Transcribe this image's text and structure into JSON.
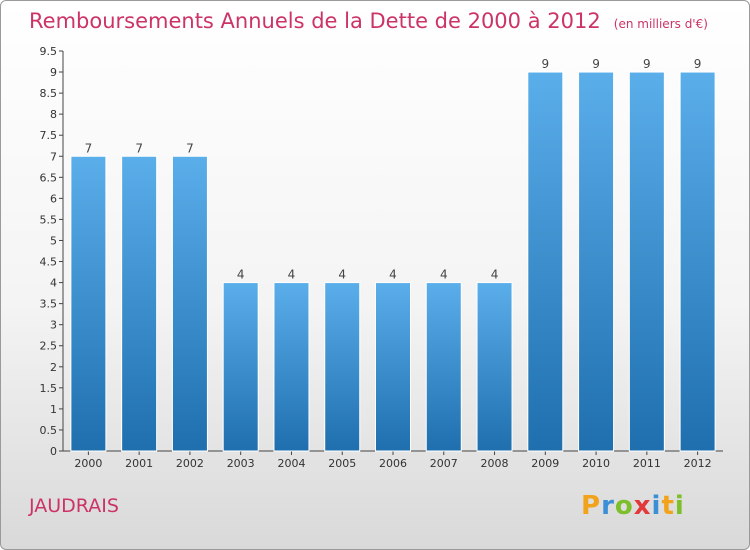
{
  "header": {
    "title": "Remboursements Annuels de la Dette de 2000 à 2012",
    "unit": "(en milliers d'€)"
  },
  "footer": {
    "commune": "JAUDRAIS",
    "logo_letters": [
      "P",
      "r",
      "o",
      "x",
      "i",
      "t",
      "i"
    ],
    "logo_colors": [
      "#f2a31c",
      "#3a8fd6",
      "#7cbf2a",
      "#e23a3a",
      "#3a8fd6",
      "#f2a31c",
      "#7cbf2a"
    ]
  },
  "colors": {
    "bar_top": "#5aaeea",
    "bar_bottom": "#1f6fae",
    "axis": "#444444",
    "grid": "#cccccc"
  },
  "chart_data": {
    "type": "bar",
    "categories": [
      "2000",
      "2001",
      "2002",
      "2003",
      "2004",
      "2005",
      "2006",
      "2007",
      "2008",
      "2009",
      "2010",
      "2011",
      "2012"
    ],
    "values": [
      7,
      7,
      7,
      4,
      4,
      4,
      4,
      4,
      4,
      9,
      9,
      9,
      9
    ],
    "data_labels": [
      "7",
      "7",
      "7",
      "4",
      "4",
      "4",
      "4",
      "4",
      "4",
      "9",
      "9",
      "9",
      "9"
    ],
    "title": "Remboursements Annuels de la Dette de 2000 à 2012",
    "xlabel": "",
    "ylabel": "",
    "ylim": [
      0,
      9.5
    ],
    "yticks": [
      0,
      0.5,
      1,
      1.5,
      2,
      2.5,
      3,
      3.5,
      4,
      4.5,
      5,
      5.5,
      6,
      6.5,
      7,
      7.5,
      8,
      8.5,
      9,
      9.5
    ],
    "ytick_labels": [
      "0",
      "0.5",
      "1",
      "1.5",
      "2",
      "2.5",
      "3",
      "3.5",
      "4",
      "4.5",
      "5",
      "5.5",
      "6",
      "6.5",
      "7",
      "7.5",
      "8",
      "8.5",
      "9",
      "9.5"
    ],
    "grid": false,
    "legend": "none"
  }
}
